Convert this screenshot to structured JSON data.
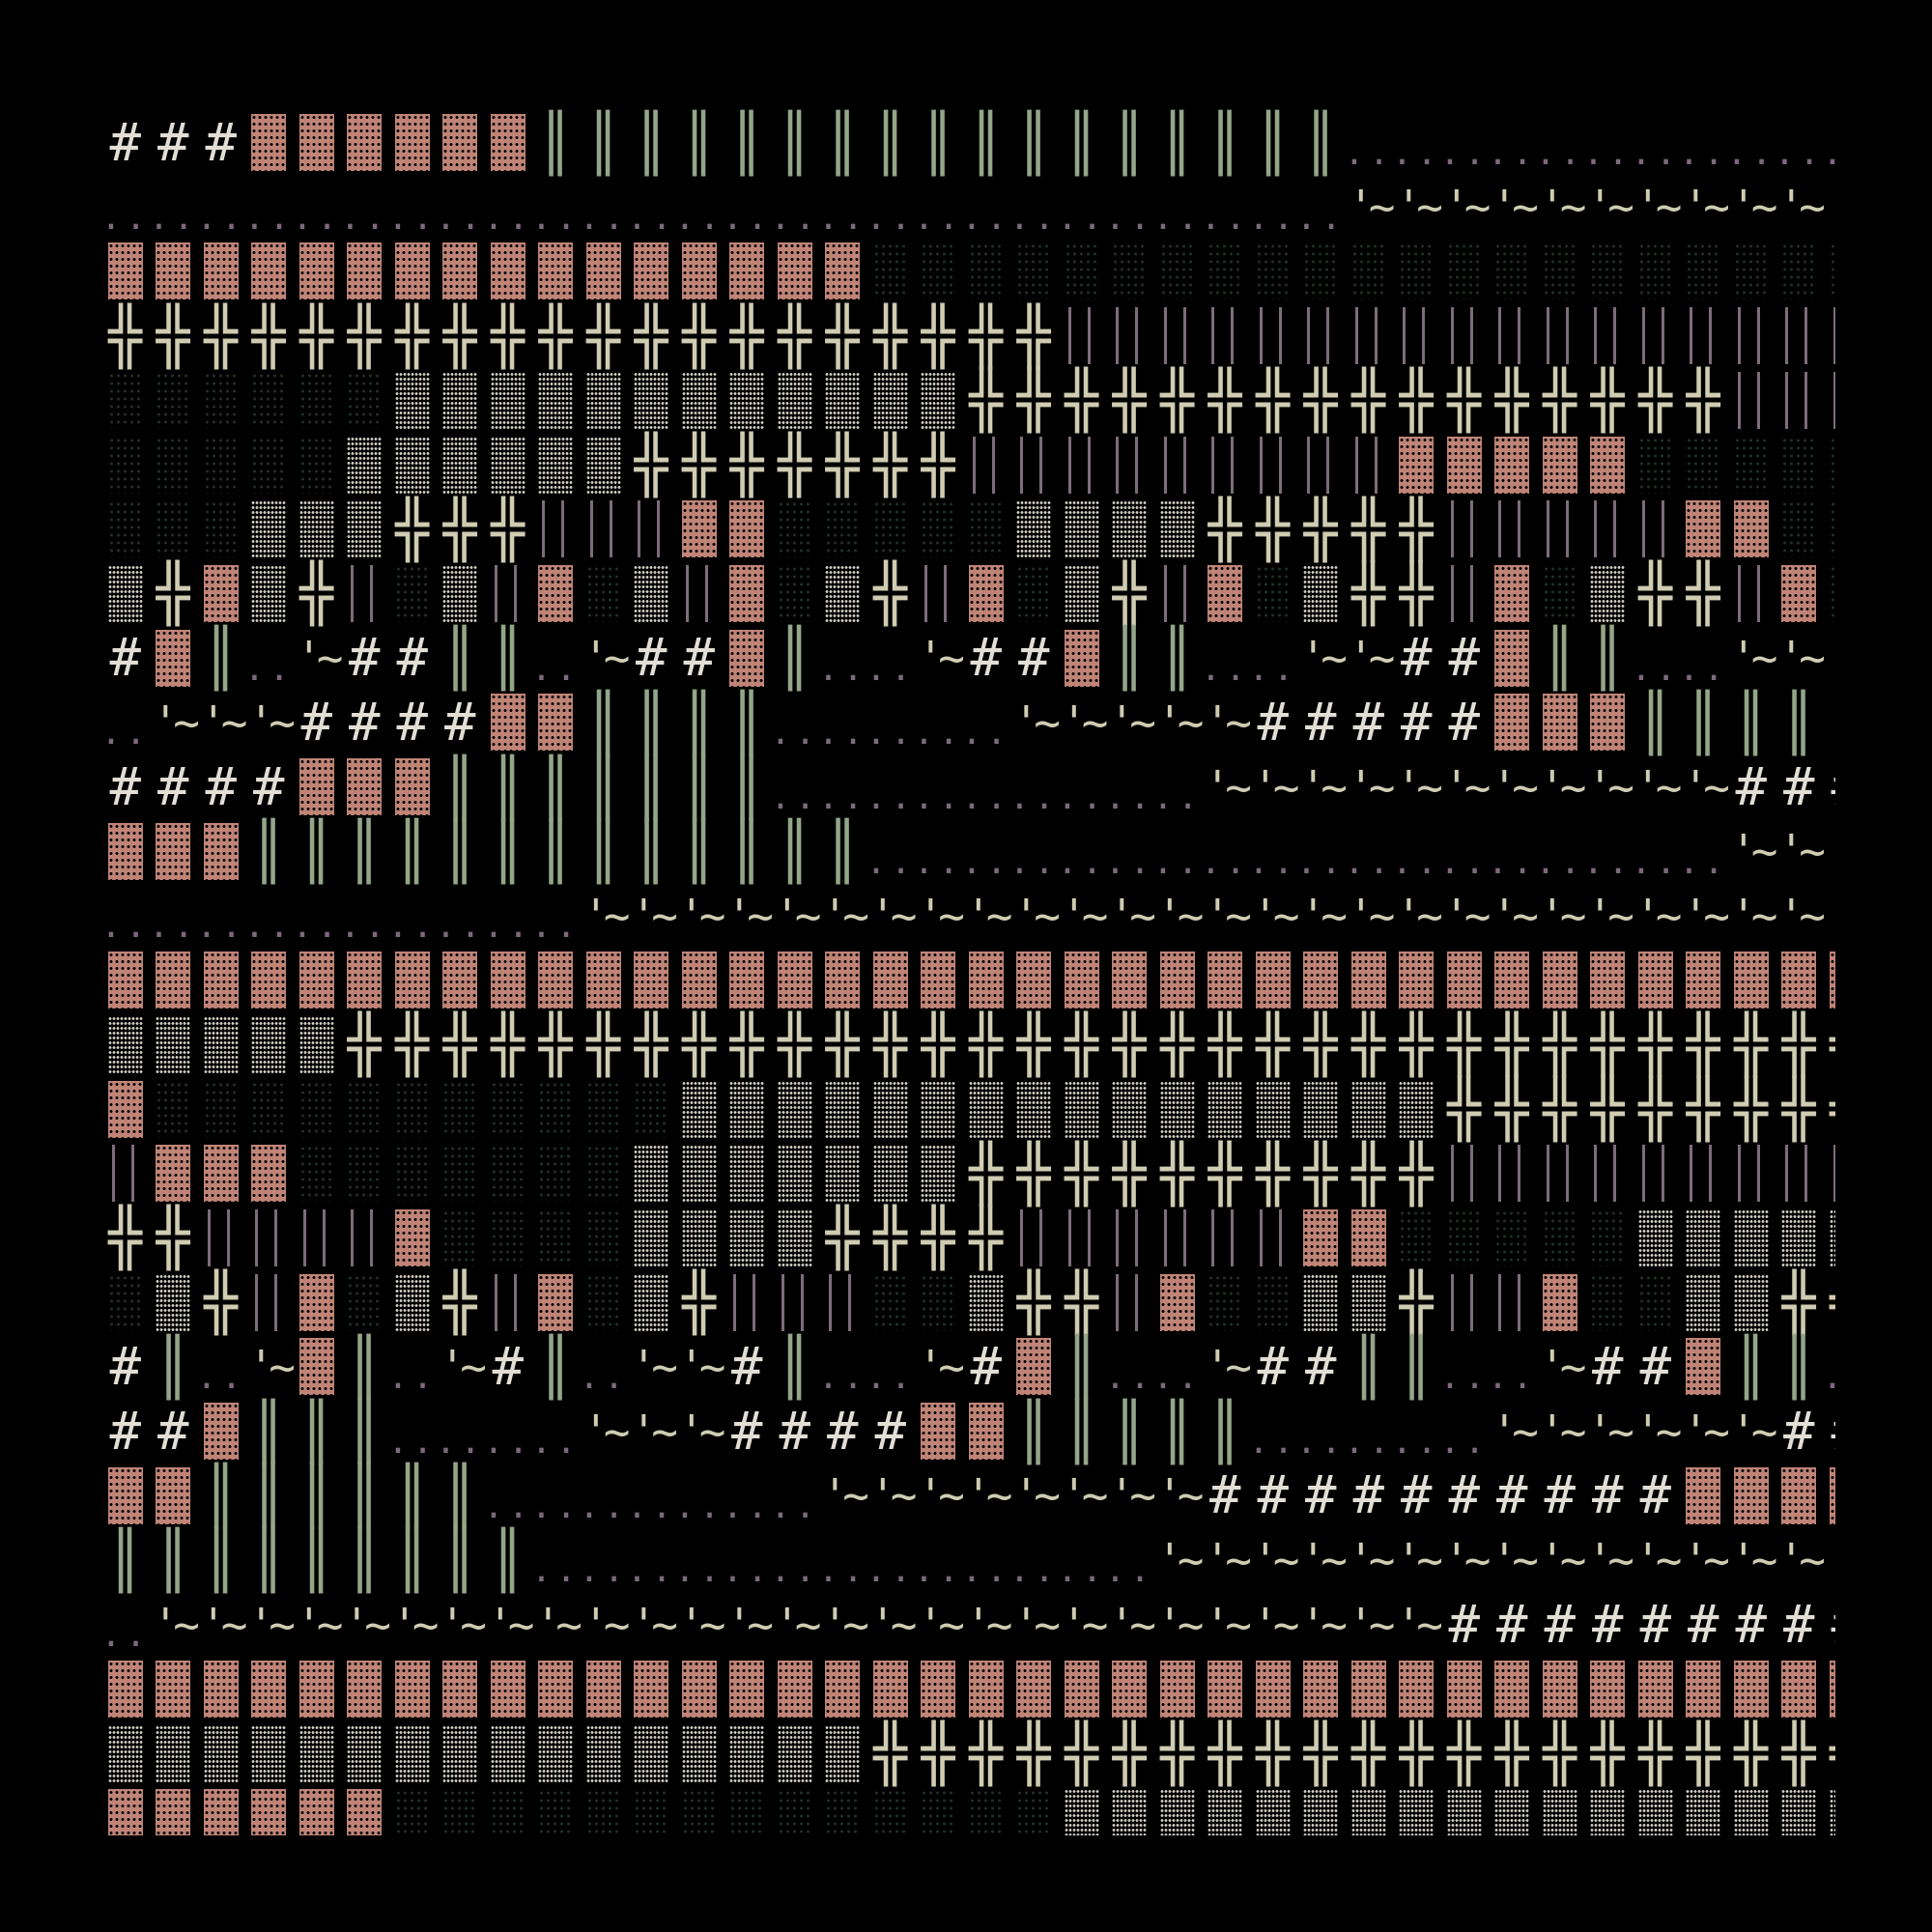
{
  "glyphs": {
    "H": {
      "name": "hash",
      "char": "#",
      "color": "#e2ded6"
    },
    "P": {
      "name": "dense-block",
      "char": "",
      "color": "#c08477"
    },
    "G": {
      "name": "double-bar",
      "char": "║",
      "color": "#93a688"
    },
    "D": {
      "name": "dots",
      "char": "..",
      "color": "#7a6a7a"
    },
    "Q": {
      "name": "quote-tilde",
      "char": "'~",
      "color": "#d0ccb2"
    },
    "X": {
      "name": "double-cross",
      "char": "╬",
      "color": "#d0ccb2"
    },
    "S": {
      "name": "dark-shade",
      "char": "",
      "color": "#1d3224"
    },
    "L": {
      "name": "light-shade",
      "char": "",
      "color": "#d6d2c8"
    },
    "B": {
      "name": "thin-bars",
      "char": "",
      "color": "#7d6c7c"
    },
    "_": {
      "name": "blank",
      "char": "",
      "color": "#000000"
    }
  },
  "background": "#000000",
  "rows": [
    "HHHPPPPPPGGGGGGGGGGGGGGGGGDDDDDDDDDDD",
    "DDDDDDDDDDDDDDDDDDDDDDDDDDQQQQQQQQQQQ",
    "PPPPPPPPPPPPPPPPSSSSSSSSSSSSSSSSSSSSS",
    "XXXXXXXXXXXXXXXXXXXXBBBBBBBBBBBBBBBBB",
    "SSSSSSLLLLLLLLLLLLXXXXXXXXXXXXXXXXBBB",
    "SSSSSLLLLLLXXXXXXXBBBBBBBBBPPPPPSSSSS",
    "SSSLLLXXXBBBPPSSSSSLLLLXXXXXBBBBBPPSS",
    "LXPLXBSLBPSLBPSLXBPSLXBPSLXXBPSLXXBPS",
    "HPGDQHHGGDQHHPGDDQHHPGGDDQQHHPGGDDQQQ",
    "DQQQHHHHPPGGGGDDDDDQQQQQHHHHHPPPGGGG_",
    "HHHHPPPGGGGGGGDDDDDDDDDQQQQQQQQQQQHHH",
    "PPPGGGGGGGGGGGGGDDDDDDDDDDDDDDDDDDQQQ",
    "DDDDDDDDDDQQQQQQQQQQQQQQQQQQQQQQQQQQQ",
    "PPPPPPPPPPPPPPPPPPPPPPPPPPPPPPPPPPPPP",
    "LLLLLXXXXXXXXXXXXXXXXXXXXXXXXXXXXXXXX",
    "PSSSSSSSSSSSLLLLLLLLLLLLLLLLXXXXXXXXX",
    "BPPPSSSSSSSLLLLLLLXXXXXXXXXXBBBBBBBBB",
    "XXBBBBPSSSSLLLLXXXXBBBBBBPPSSSSSLLLLL",
    "SLXBPSLXBPSLXBBBSSLXXBPSSLLXBBPSSLLXX",
    "HGDQPGDQHGDQQHGDDQHPGDDQHHGGDDQHHPGGD",
    "HHPGGGDDDDQQQHHHHPPGGGGGDDDDDQQQQQQHH",
    "PPGGGGGGDDDDDDDQQQQQQQQHHHHHHHHHHPPPP",
    "GGGGGGGGGDDDDDDDDDDDDDQQQQQQQQQQQQQQQ",
    "DQQQQQQQQQQQQQQQQQQQQQQQQQQQHHHHHHHHH",
    "PPPPPPPPPPPPPPPPPPPPPPPPPPPPPPPPPPPPP",
    "LLLLLLLLLLLLLLLLXXXXXXXXXXXXXXXXXXXXX",
    "PPPPPPSSSSSSSSSSSSSSLLLLLLLLLLLLLLLLL"
  ]
}
